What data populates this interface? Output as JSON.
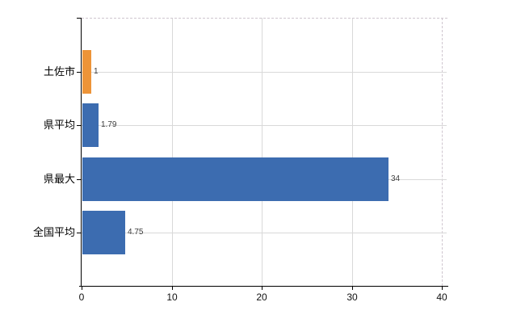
{
  "chart_data": {
    "type": "bar",
    "orientation": "horizontal",
    "title": "",
    "xlabel": "",
    "ylabel": "",
    "categories": [
      "土佐市",
      "県平均",
      "県最大",
      "全国平均"
    ],
    "values": [
      1,
      1.79,
      34,
      4.75
    ],
    "value_labels": [
      "1",
      "1.79",
      "34",
      "4.75"
    ],
    "bar_colors": [
      "#ED9438",
      "#3C6CB0",
      "#3C6CB0",
      "#3C6CB0"
    ],
    "xlim": [
      0,
      40
    ],
    "xticks": [
      0,
      10,
      20,
      30,
      40
    ],
    "grid": true,
    "legend": false
  },
  "colors": {
    "highlight_bar": "#ED9438",
    "default_bar": "#3C6CB0",
    "gridline": "#D9D9D9",
    "dashed_border": "#CFC6CF",
    "axis": "#000000",
    "value_label": "#3D3D3D",
    "tick_label": "#111111"
  }
}
